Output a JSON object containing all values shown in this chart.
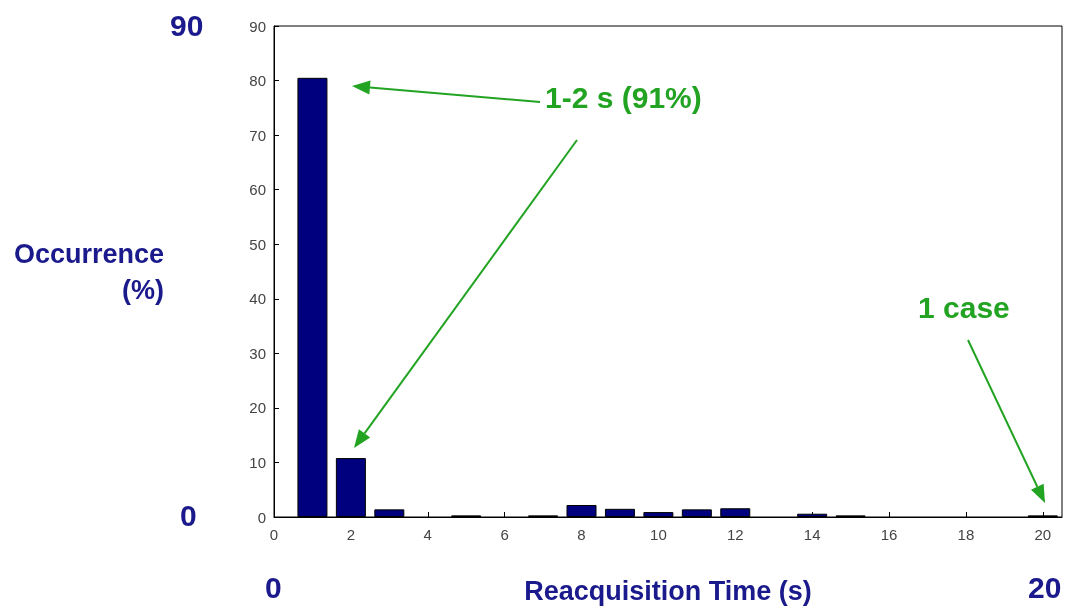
{
  "chart_data": {
    "type": "bar",
    "xlabel": "Reacquisition Time (s)",
    "ylabel": "Occurrence\n(%)",
    "x": [
      1,
      2,
      3,
      5,
      7,
      8,
      9,
      10,
      11,
      12,
      14,
      15,
      20
    ],
    "values": [
      80.5,
      10.8,
      1.4,
      0.3,
      0.3,
      2.2,
      1.5,
      0.9,
      1.4,
      1.6,
      0.6,
      0.3,
      0.3
    ],
    "color": "#00007f",
    "xlim": [
      0,
      20.5
    ],
    "xticks": [
      0,
      2,
      4,
      6,
      8,
      10,
      12,
      14,
      16,
      18,
      20
    ],
    "ylim": [
      0,
      90
    ],
    "yticks": [
      0,
      10,
      20,
      30,
      40,
      50,
      60,
      70,
      80,
      90
    ],
    "grid": false,
    "annotations": [
      "1-2 s (91%)",
      "1 case",
      "90",
      "0",
      "0",
      "20"
    ]
  }
}
